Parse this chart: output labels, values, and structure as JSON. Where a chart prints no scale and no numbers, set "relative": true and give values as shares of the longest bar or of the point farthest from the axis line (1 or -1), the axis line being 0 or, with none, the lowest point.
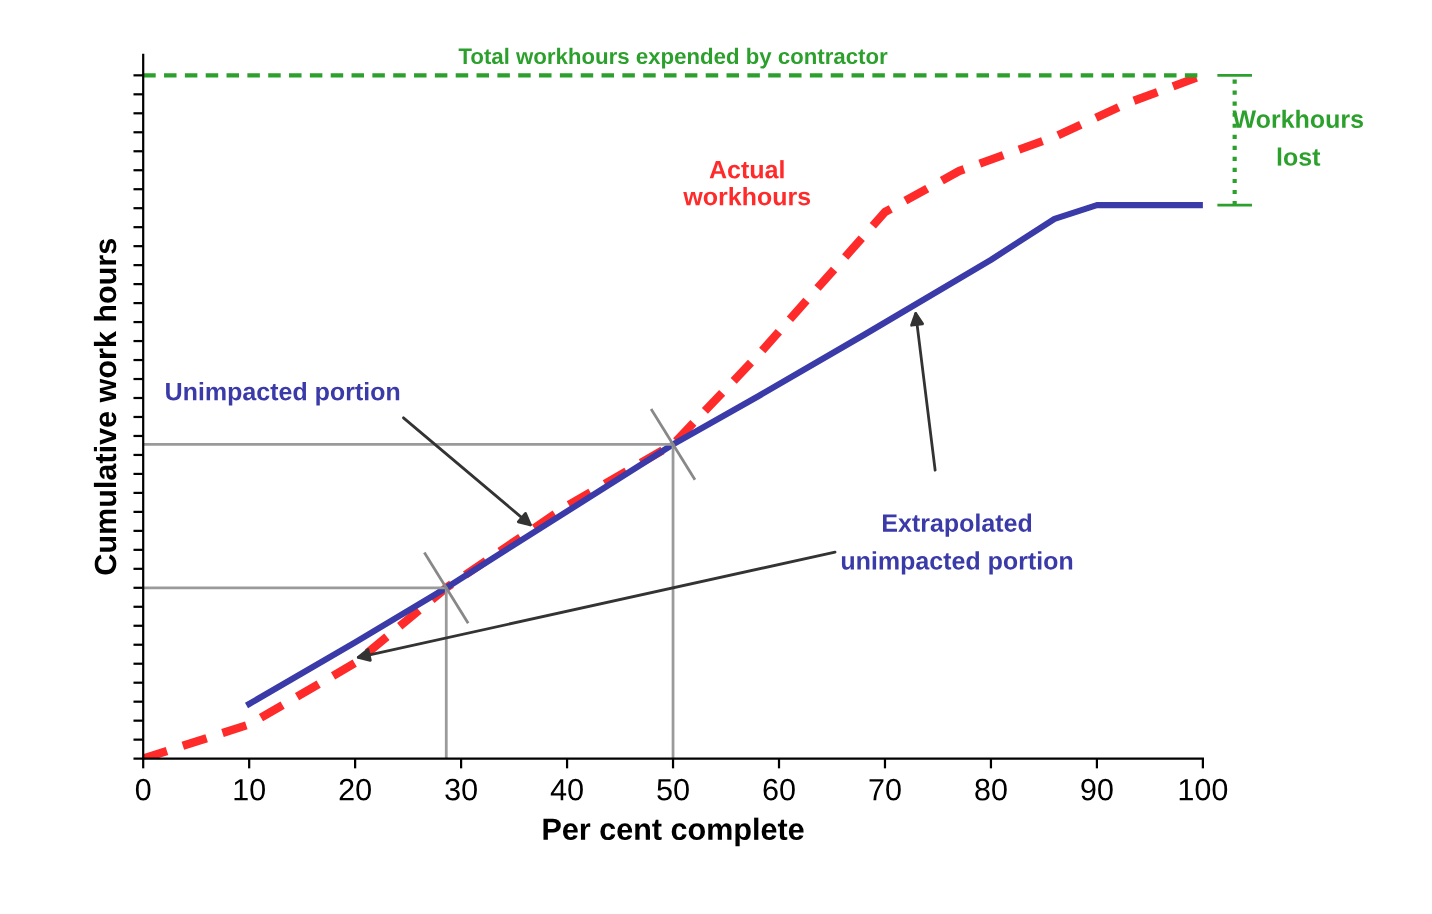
{
  "chart_data": {
    "type": "line",
    "relative": true,
    "xlabel": "Per cent complete",
    "ylabel": "Cumulative work hours",
    "xlim": [
      0,
      100
    ],
    "xticks": [
      0,
      10,
      20,
      30,
      40,
      50,
      60,
      70,
      80,
      90,
      100
    ],
    "tick_labels": "x",
    "grid": false,
    "series": [
      {
        "name": "Actual workhours",
        "color": "#ff2a2a",
        "line_style": "dashed",
        "x": [
          0,
          10,
          20,
          28.6,
          40,
          50,
          58,
          70,
          77,
          86,
          93,
          100
        ],
        "values": [
          0,
          0.05,
          0.14,
          0.25,
          0.37,
          0.46,
          0.59,
          0.8,
          0.86,
          0.91,
          0.96,
          1
        ]
      },
      {
        "color": "#3a3aa8",
        "line_style": "solid",
        "x": [
          10,
          20,
          28.6,
          50,
          58,
          68,
          80,
          86,
          90,
          100
        ],
        "values": [
          0.08,
          0.17,
          0.25,
          0.46,
          0.53,
          0.62,
          0.73,
          0.79,
          0.81,
          0.81
        ]
      },
      {
        "color": "#9a9a9a",
        "line_style": "solid",
        "x": [
          0,
          28.6,
          28.6
        ],
        "values": [
          0.25,
          0.25,
          0
        ]
      },
      {
        "color": "#9a9a9a",
        "line_style": "solid",
        "x": [
          0,
          50,
          50
        ],
        "values": [
          0.46,
          0.46,
          0
        ]
      }
    ],
    "ref_lines": [
      {
        "axis": "y",
        "value": 1,
        "label": "Total workhours expended by contractor",
        "color": "#2ca02c",
        "line_style": "dashed"
      }
    ],
    "annotations": [
      "Unimpacted portion",
      "Extrapolated\nunimpacted portion",
      "Workhours\nlost"
    ]
  }
}
